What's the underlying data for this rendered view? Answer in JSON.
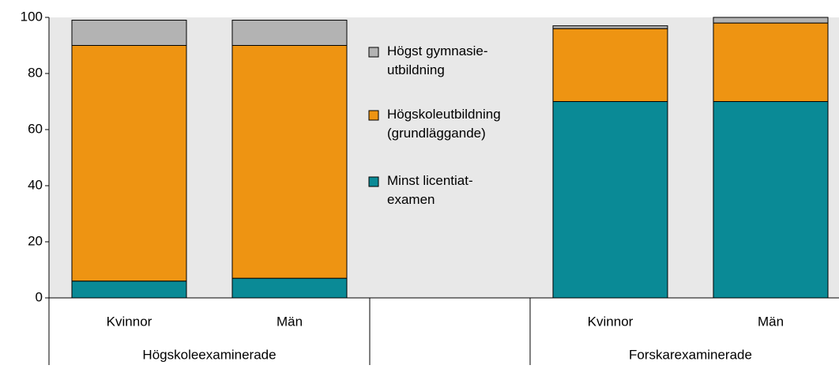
{
  "chart_data": {
    "type": "stacked_bar",
    "categories": [
      "Kvinnor",
      "Män",
      null,
      "Kvinnor",
      "Män"
    ],
    "groups": [
      "Högskoleexaminerade",
      null,
      "Forskarexaminerade"
    ],
    "group_sizes": [
      2,
      1,
      2
    ],
    "series": [
      {
        "name": "Minst licentiat-\nexamen",
        "color": "#0a8a96",
        "values": [
          6,
          7,
          null,
          70,
          70
        ]
      },
      {
        "name": "Högskoleutbildning\n(grundläggande)",
        "color": "#ee9412",
        "values": [
          84,
          83,
          null,
          26,
          28
        ]
      },
      {
        "name": "Högst gymnasie-\nutbildning",
        "color": "#b3b3b3",
        "values": [
          9,
          9,
          null,
          1,
          2
        ]
      }
    ],
    "ylim": [
      0,
      100
    ],
    "yticks": [
      0,
      20,
      40,
      60,
      80,
      100
    ],
    "legend": "center"
  }
}
